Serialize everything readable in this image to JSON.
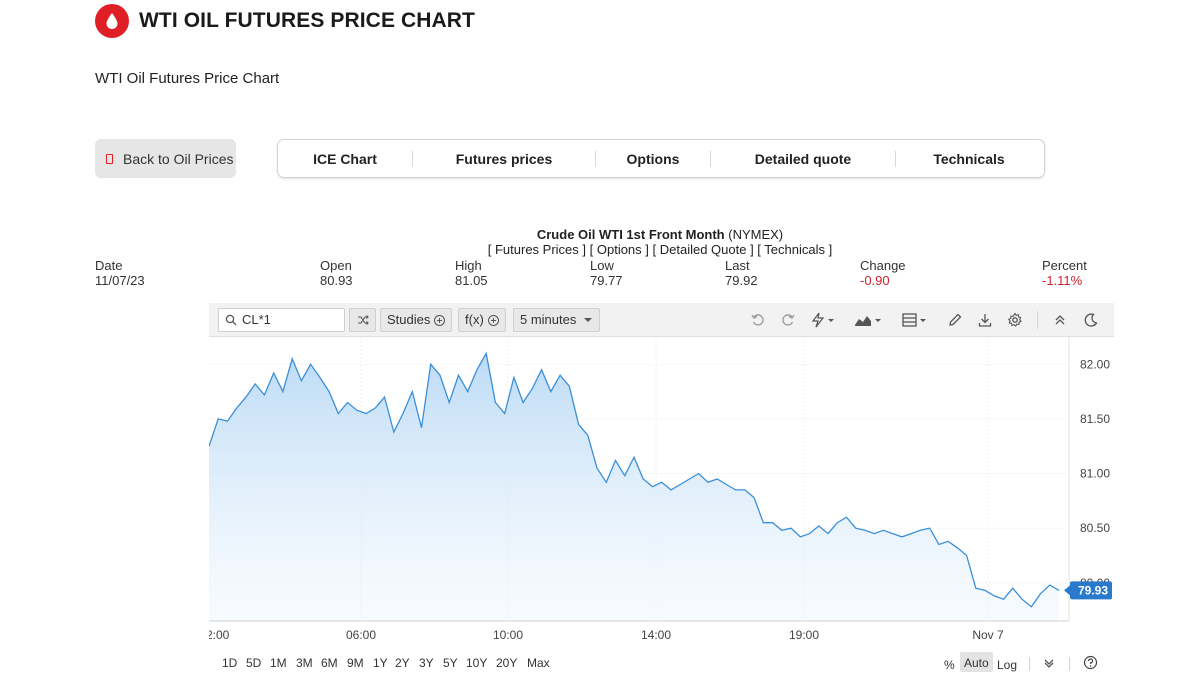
{
  "header": {
    "title": "WTI OIL FUTURES PRICE CHART",
    "logo_icon": "oil-drop-icon",
    "brand_color": "#e01e26"
  },
  "subtitle": "WTI Oil Futures Price Chart",
  "back_button": {
    "label": "Back to Oil Prices"
  },
  "tabs": [
    "ICE Chart",
    "Futures prices",
    "Options",
    "Detailed quote",
    "Technicals"
  ],
  "quote": {
    "name": "Crude Oil WTI 1st Front Month",
    "exchange": "(NYMEX)",
    "links": [
      "Futures Prices",
      "Options",
      "Detailed Quote",
      "Technicals"
    ]
  },
  "stats": {
    "date": {
      "label": "Date",
      "value": "11/07/23"
    },
    "open": {
      "label": "Open",
      "value": "80.93"
    },
    "high": {
      "label": "High",
      "value": "81.05"
    },
    "low": {
      "label": "Low",
      "value": "79.77"
    },
    "last": {
      "label": "Last",
      "value": "79.92"
    },
    "change": {
      "label": "Change",
      "value": "-0.90"
    },
    "percent": {
      "label": "Percent",
      "value": "-1.11%"
    }
  },
  "toolbar": {
    "symbol": "CL*1",
    "studies_label": "Studies",
    "fx_label": "f(x)",
    "interval_label": "5 minutes",
    "icons": [
      "undo-icon",
      "redo-icon",
      "drawing-tools-icon",
      "chart-type-icon",
      "layout-icon",
      "pencil-icon",
      "download-icon",
      "settings-icon",
      "collapse-icon",
      "dark-mode-icon"
    ]
  },
  "chart_data": {
    "type": "area",
    "title": "",
    "xlabel": "",
    "ylabel": "",
    "x_tick_labels": [
      "2:00",
      "06:00",
      "10:00",
      "14:00",
      "19:00",
      "Nov 7"
    ],
    "y_tick_labels": [
      "82.00",
      "81.50",
      "81.00",
      "80.50",
      "80.00"
    ],
    "ylim": [
      79.65,
      82.25
    ],
    "last_price_label": "79.93",
    "line_color": "#3a8fd9",
    "grid": true,
    "series": [
      {
        "values": [
          81.25,
          81.5,
          81.48,
          81.6,
          81.7,
          81.82,
          81.72,
          81.92,
          81.75,
          82.05,
          81.85,
          82.0,
          81.88,
          81.75,
          81.55,
          81.65,
          81.58,
          81.55,
          81.6,
          81.7,
          81.38,
          81.55,
          81.75,
          81.42,
          82.0,
          81.9,
          81.65,
          81.9,
          81.75,
          81.95,
          82.1,
          81.65,
          81.55,
          81.88,
          81.65,
          81.78,
          81.95,
          81.75,
          81.9,
          81.8,
          81.45,
          81.35,
          81.05,
          80.92,
          81.12,
          80.98,
          81.15,
          80.95,
          80.88,
          80.92,
          80.85,
          80.9,
          80.95,
          81.0,
          80.92,
          80.95,
          80.9,
          80.85,
          80.85,
          80.78,
          80.55,
          80.55,
          80.48,
          80.5,
          80.42,
          80.45,
          80.52,
          80.45,
          80.55,
          80.6,
          80.5,
          80.48,
          80.45,
          80.48,
          80.45,
          80.42,
          80.45,
          80.48,
          80.5,
          80.35,
          80.38,
          80.32,
          80.25,
          79.95,
          79.93,
          79.88,
          79.85,
          79.95,
          79.85,
          79.78,
          79.9,
          79.98,
          79.93
        ]
      }
    ]
  },
  "ranges": [
    "1D",
    "5D",
    "1M",
    "3M",
    "6M",
    "9M",
    "1Y",
    "2Y",
    "3Y",
    "5Y",
    "10Y",
    "20Y",
    "Max"
  ],
  "scale_options": {
    "percent": "%",
    "auto": "Auto",
    "log": "Log"
  }
}
